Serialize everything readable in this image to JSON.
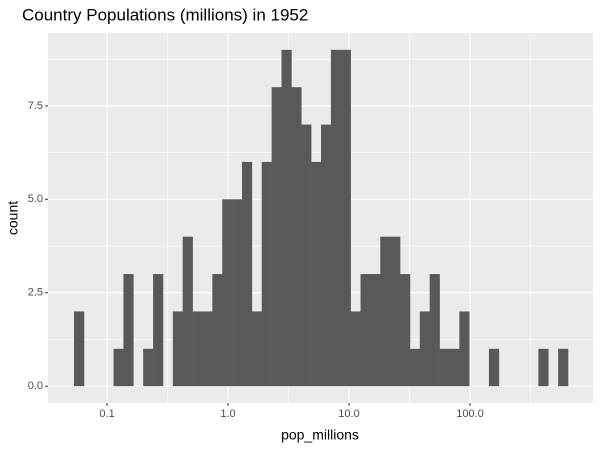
{
  "chart_data": {
    "type": "histogram",
    "title": "Country Populations (millions) in 1952",
    "x_label": "pop_millions",
    "y_label": "count",
    "xscale": "log",
    "color": "#595959",
    "grid": true,
    "bins": [
      0.0533,
      0.0644,
      0.0777,
      0.0938,
      0.1131,
      0.1366,
      0.1648,
      0.1989,
      0.2401,
      0.2896,
      0.3496,
      0.4219,
      0.5091,
      0.6145,
      0.7417,
      0.895,
      1.08,
      1.304,
      1.573,
      1.899,
      2.292,
      2.766,
      3.338,
      4.029,
      4.862,
      5.868,
      7.083,
      8.548,
      10.31,
      12.45,
      15.02,
      18.13,
      21.88,
      26.41,
      31.87,
      38.47,
      46.43,
      56.03,
      67.63,
      81.6,
      98.5,
      118.9,
      143.4,
      173.1,
      208.9,
      252.2,
      304.3,
      367.3,
      443.3,
      535.0,
      645.7
    ],
    "values": [
      2,
      0,
      0,
      0,
      1,
      3,
      0,
      1,
      3,
      0,
      2,
      4,
      2,
      2,
      3,
      5,
      5,
      6,
      2,
      6,
      8,
      9,
      8,
      7,
      6,
      7,
      9,
      9,
      2,
      3,
      3,
      4,
      4,
      3,
      1,
      2,
      3,
      1,
      1,
      2,
      0,
      0,
      1,
      0,
      0,
      0,
      0,
      1,
      0,
      1
    ],
    "xlim": [
      0.0325,
      1039
    ],
    "ylim": [
      -0.45,
      9.45
    ],
    "xticks": [
      0.1,
      {
        "value": 1,
        "label": "1.0"
      },
      {
        "value": 10,
        "label": "10.0"
      },
      {
        "value": 100,
        "label": "100.0"
      }
    ],
    "yticks": [
      {
        "value": 0,
        "label": "0.0"
      },
      2.5,
      {
        "value": 5,
        "label": "5.0"
      },
      7.5
    ]
  }
}
